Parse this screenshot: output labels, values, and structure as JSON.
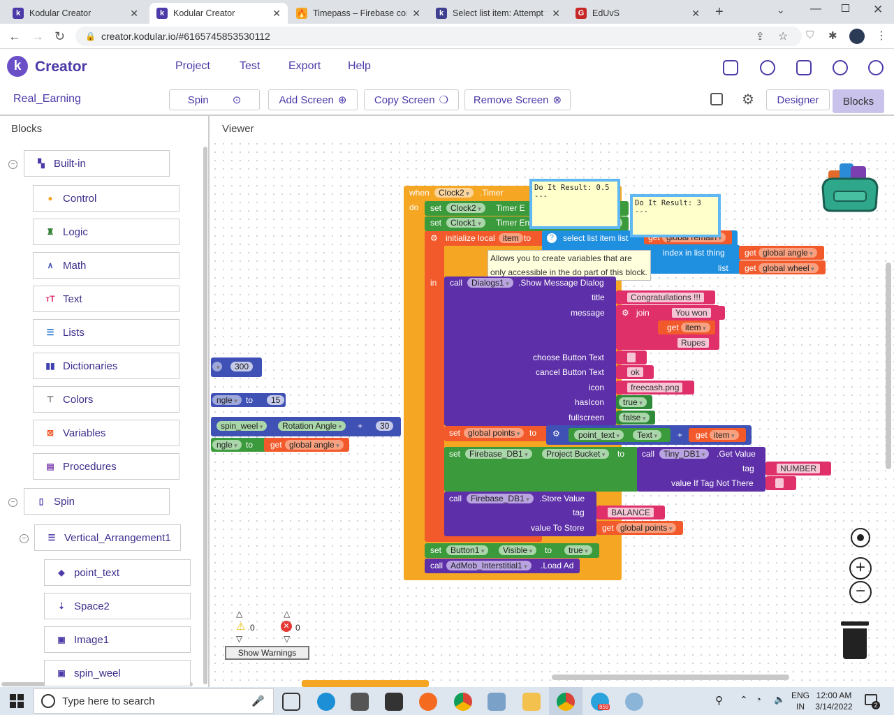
{
  "browser": {
    "tabs": [
      {
        "title": "Kodular Creator",
        "icon": "kodular-icon",
        "color": "#4b3aa8",
        "letter": "k"
      },
      {
        "title": "Kodular Creator",
        "icon": "kodular-icon",
        "color": "#4b3aa8",
        "letter": "k"
      },
      {
        "title": "Timepass – Firebase cons",
        "icon": "firebase-icon",
        "color": "#f5a623",
        "letter": "🔥"
      },
      {
        "title": "Select list item: Attempt t",
        "icon": "kodular-community-icon",
        "color": "#3f3f8f",
        "letter": "k"
      },
      {
        "title": "EdUvS",
        "icon": "edu-icon",
        "color": "#c62828",
        "letter": "G"
      }
    ],
    "url": "creator.kodular.io/#6165745853530112"
  },
  "app": {
    "brand": "Creator",
    "menu": [
      "Project",
      "Test",
      "Export",
      "Help"
    ],
    "project": "Real_Earning",
    "screen_select": "Spin",
    "add_screen": "Add Screen",
    "copy_screen": "Copy Screen",
    "remove_screen": "Remove Screen",
    "designer": "Designer",
    "blocks": "Blocks"
  },
  "panel": {
    "blocks_title": "Blocks",
    "viewer_title": "Viewer",
    "builtin": "Built-in",
    "builtin_items": [
      {
        "label": "Control",
        "icon": "control-icon",
        "color": "#f5a623"
      },
      {
        "label": "Logic",
        "icon": "logic-icon",
        "color": "#2e7d32"
      },
      {
        "label": "Math",
        "icon": "math-icon",
        "color": "#3f51b5"
      },
      {
        "label": "Text",
        "icon": "text-icon",
        "color": "#e0306a"
      },
      {
        "label": "Lists",
        "icon": "lists-icon",
        "color": "#1f6fd0"
      },
      {
        "label": "Dictionaries",
        "icon": "dictionaries-icon",
        "color": "#3f3fb0"
      },
      {
        "label": "Colors",
        "icon": "colors-icon",
        "color": "#666666"
      },
      {
        "label": "Variables",
        "icon": "variables-icon",
        "color": "#f25a2b"
      },
      {
        "label": "Procedures",
        "icon": "procedures-icon",
        "color": "#7b3fb0"
      }
    ],
    "screen": "Spin",
    "arrangement": "Vertical_Arrangement1",
    "components": [
      {
        "label": "point_text",
        "icon": "label-icon"
      },
      {
        "label": "Space2",
        "icon": "space-icon"
      },
      {
        "label": "Image1",
        "icon": "image-icon"
      },
      {
        "label": "spin_weel",
        "icon": "image-icon"
      }
    ]
  },
  "workspace": {
    "event_when": "when",
    "event_comp": "Clock2",
    "event_name": ".Timer",
    "do": "do",
    "set": "set",
    "to": "to",
    "set1_comp": "Clock2",
    "set1_prop": "Timer E",
    "set2_comp": "Clock1",
    "set2_prop": "Timer Enabled",
    "set2_val": "false",
    "init_local": "initialize local",
    "init_var": "item",
    "select_item": "select list item  list",
    "get": "get",
    "global_remain": "global remain",
    "index_in_list": "index in list  thing",
    "list_label": "list",
    "global_angle": "global angle",
    "global_wheel": "global wheel",
    "tooltip_text": "Allows you to create variables that are only accessible in the do part of this block.",
    "do_result_1": "Do It Result: 0.5\n---",
    "do_result_2": "Do It Result: 3\n---",
    "in": "in",
    "call": "call",
    "dialog_comp": "Dialogs1",
    "dialog_method": ".Show Message Dialog",
    "title_label": "title",
    "title_val": "Congratullations !!!",
    "message_label": "message",
    "join": "join",
    "msg1": "You won",
    "msg_var": "item",
    "msg3": "Rupes",
    "choose_label": "choose Button Text",
    "choose_val": "",
    "cancel_label": "cancel Button Text",
    "cancel_val": "ok",
    "icon_label": "icon",
    "icon_val": "freecash.png",
    "hasicon_label": "hasIcon",
    "hasicon_val": "true",
    "fullscreen_label": "fullscreen",
    "fullscreen_val": "false",
    "global_points": "global points",
    "point_comp": "point_text",
    "point_prop": "Text",
    "plus": "+",
    "item_var": "item",
    "fb_comp": "Firebase_DB1",
    "fb_prop": "Project Bucket",
    "tiny_comp": "Tiny_DB1",
    "get_value": ".Get Value",
    "tag_label": "tag",
    "tag_val": "NUMBER",
    "value_if_label": "value If Tag Not There",
    "value_if_val": "",
    "store_value": ".Store Value",
    "store_tag": "BALANCE",
    "value_to_store": "value To Store",
    "button_comp": "Button1",
    "button_prop": "Visible",
    "button_val": "true",
    "admob_comp": "AdMob_Interstitial1",
    "load_ad": ".Load Ad",
    "side_300": "300",
    "side_angle": "ngle",
    "side_15": "15",
    "side_spin": "spin_weel",
    "side_rot": "Rotation Angle",
    "side_30": "30",
    "side_angle2": "ngle",
    "side_get_angle": "global angle",
    "warn_count": "0",
    "err_count": "0",
    "show_warnings": "Show Warnings"
  },
  "taskbar": {
    "search": "Type here to search",
    "lang": "ENG",
    "lang2": "IN",
    "time": "12:00 AM",
    "date": "3/14/2022",
    "notif": "2",
    "badge": "859"
  }
}
